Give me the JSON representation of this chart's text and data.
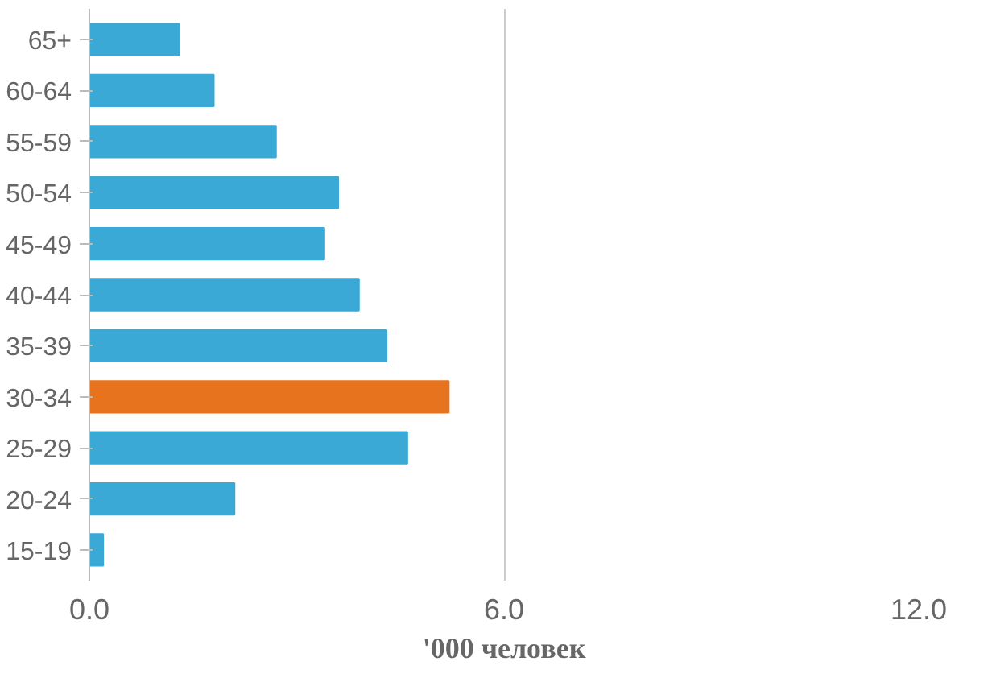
{
  "chart_data": {
    "type": "bar",
    "orientation": "horizontal",
    "xlabel": "'000 человек",
    "categories": [
      "65+",
      "60-64",
      "55-59",
      "50-54",
      "45-49",
      "40-44",
      "35-39",
      "30-34",
      "25-29",
      "20-24",
      "15-19"
    ],
    "values": [
      1.3,
      1.8,
      2.7,
      3.6,
      3.4,
      3.9,
      4.3,
      5.2,
      4.6,
      2.1,
      0.2
    ],
    "colors": [
      "#3aa9d6",
      "#3aa9d6",
      "#3aa9d6",
      "#3aa9d6",
      "#3aa9d6",
      "#3aa9d6",
      "#3aa9d6",
      "#e8731f",
      "#3aa9d6",
      "#3aa9d6",
      "#3aa9d6"
    ],
    "xlim": [
      0,
      12
    ],
    "xticks": [
      {
        "value": 0,
        "label": "0.0"
      },
      {
        "value": 6,
        "label": "6.0"
      },
      {
        "value": 12,
        "label": "12.0"
      }
    ],
    "grid": "x"
  }
}
